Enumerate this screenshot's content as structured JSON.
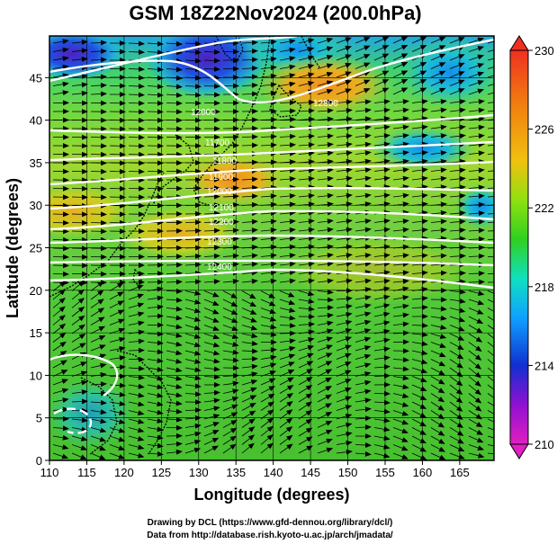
{
  "title": "GSM 18Z22Nov2024 (200.0hPa)",
  "xlabel": "Longitude (degrees)",
  "ylabel": "Latitude  (degrees)",
  "x_ticks": [
    "110",
    "115",
    "120",
    "125",
    "130",
    "135",
    "140",
    "145",
    "150",
    "155",
    "160",
    "165"
  ],
  "y_ticks": [
    "0",
    "5",
    "10",
    "15",
    "20",
    "25",
    "30",
    "35",
    "40",
    "45"
  ],
  "colorbar": {
    "ticks": [
      "230",
      "226",
      "222",
      "218",
      "214",
      "210"
    ],
    "min": 210,
    "max": 230,
    "colors": [
      "#e020c0",
      "#9010d0",
      "#1030d0",
      "#10a0ff",
      "#10e0c0",
      "#30d020",
      "#90e010",
      "#f0c010",
      "#f08010",
      "#f03020"
    ]
  },
  "contour_labels": [
    "12000",
    "12800",
    "11700",
    "11800",
    "11900",
    "12000",
    "12100",
    "12200",
    "12300",
    "12400"
  ],
  "credits": {
    "line1": "Drawing by DCL (https://www.gfd-dennou.org/library/dcl/)",
    "line2": "Data from http://database.rish.kyoto-u.ac.jp/arch/jmadata/"
  }
}
